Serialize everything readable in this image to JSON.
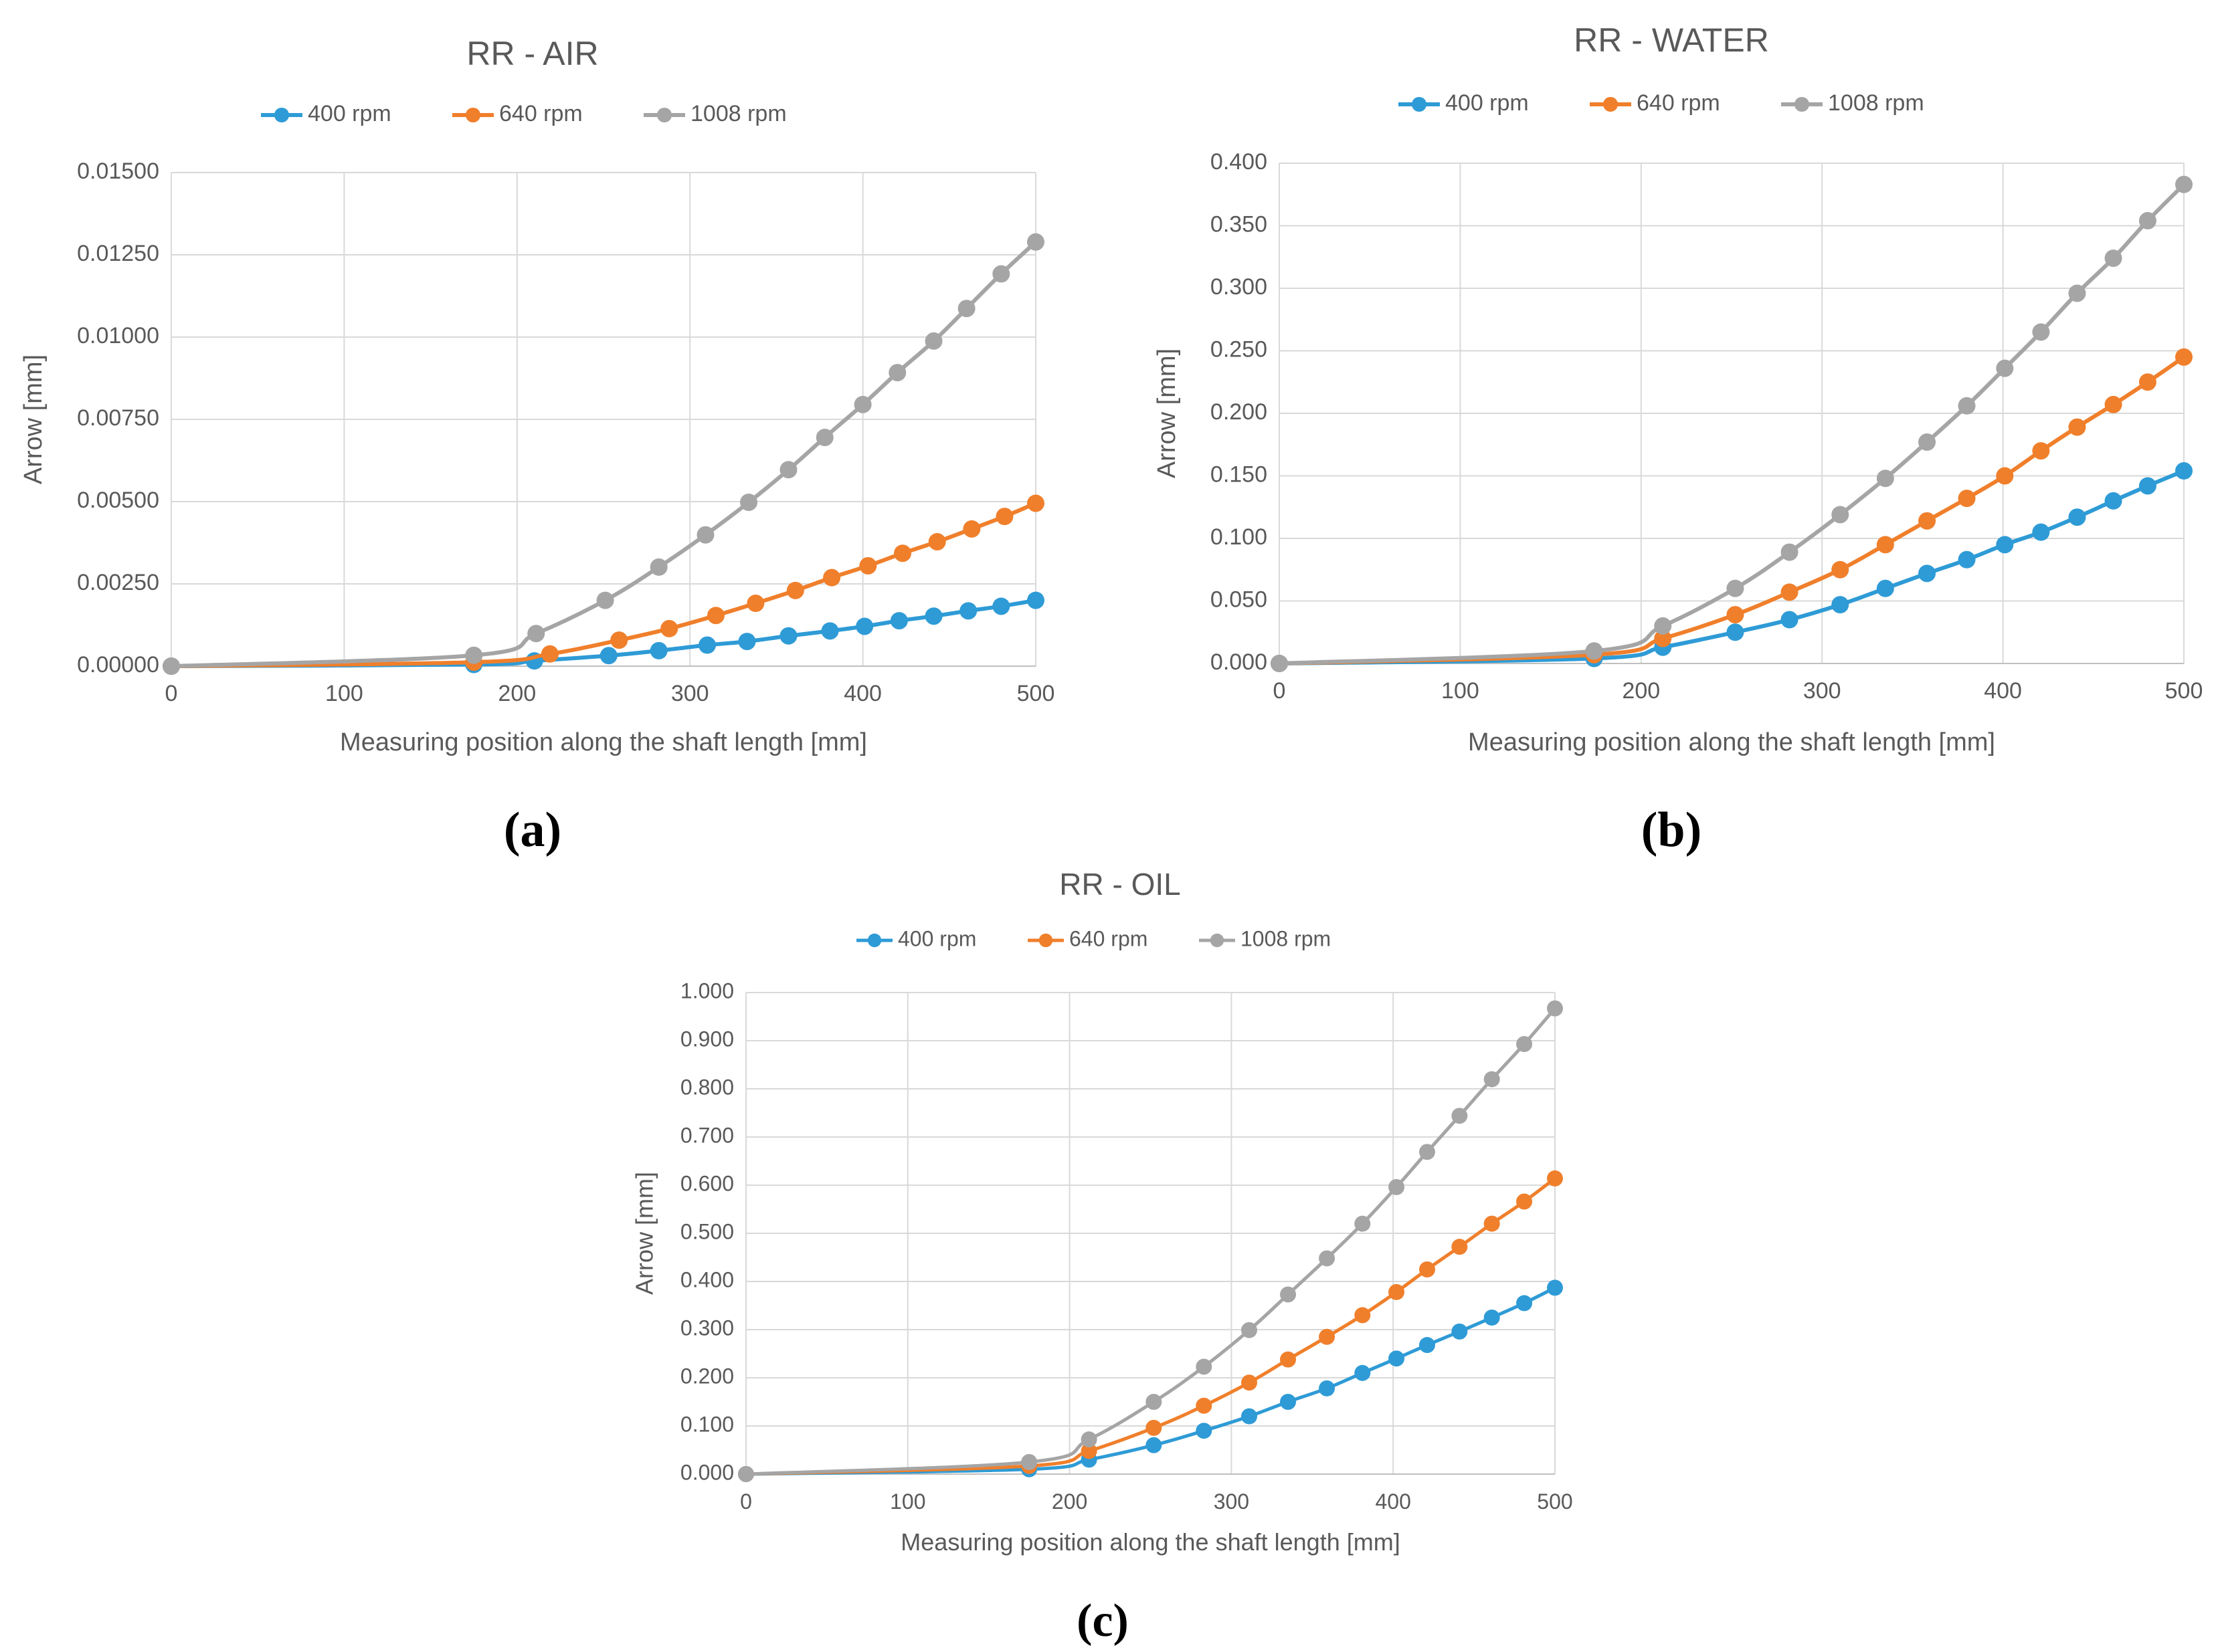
{
  "series_colors": {
    "400 rpm": "#2E9BD6",
    "640 rpm": "#F07F2B",
    "1008 rpm": "#A5A5A5"
  },
  "chart_data": [
    {
      "type": "line",
      "panel_label": "(a)",
      "title": "RR - AIR",
      "xlabel": "Measuring position along the shaft length [mm]",
      "ylabel": "Arrow  [mm]",
      "xlim": [
        0,
        500
      ],
      "ylim": [
        0,
        0.015
      ],
      "xticks": [
        0,
        100,
        200,
        300,
        400,
        500
      ],
      "xtick_labels": [
        "0",
        "100",
        "200",
        "300",
        "400",
        "500"
      ],
      "yticks": [
        0,
        0.0025,
        0.005,
        0.0075,
        0.01,
        0.0125,
        0.015
      ],
      "ytick_labels": [
        "0.00000",
        "0.00250",
        "0.00500",
        "0.00750",
        "0.01000",
        "0.01250",
        "0.01500"
      ],
      "grid": true,
      "legend_position": "top",
      "series": [
        {
          "name": "400 rpm",
          "x": [
            0,
            175,
            210,
            253,
            282,
            310,
            333,
            357,
            381,
            401,
            421,
            441,
            461,
            480,
            500
          ],
          "values": [
            0,
            5e-05,
            0.00016,
            0.00032,
            0.00047,
            0.00064,
            0.00075,
            0.00092,
            0.00107,
            0.00121,
            0.00138,
            0.00152,
            0.00168,
            0.00182,
            0.002
          ]
        },
        {
          "name": "640 rpm",
          "x": [
            0,
            175,
            219,
            259,
            288,
            315,
            338,
            361,
            382,
            403,
            423,
            443,
            463,
            482,
            500
          ],
          "values": [
            0,
            0.00012,
            0.00037,
            0.00079,
            0.00114,
            0.00154,
            0.00191,
            0.0023,
            0.00269,
            0.00305,
            0.00343,
            0.00378,
            0.00417,
            0.00455,
            0.00495
          ]
        },
        {
          "name": "1008 rpm",
          "x": [
            0,
            175,
            211,
            251,
            282,
            309,
            334,
            357,
            378,
            400,
            420,
            441,
            460,
            480,
            500
          ],
          "values": [
            0,
            0.00033,
            0.00099,
            0.002,
            0.00301,
            0.00399,
            0.00498,
            0.00597,
            0.00695,
            0.00795,
            0.00892,
            0.00988,
            0.01087,
            0.01192,
            0.01289
          ]
        }
      ]
    },
    {
      "type": "line",
      "panel_label": "(b)",
      "title": "RR - WATER",
      "xlabel": "Measuring position along the shaft length [mm]",
      "ylabel": "Arrow  [mm]",
      "xlim": [
        0,
        500
      ],
      "ylim": [
        0,
        0.4
      ],
      "xticks": [
        0,
        100,
        200,
        300,
        400,
        500
      ],
      "xtick_labels": [
        "0",
        "100",
        "200",
        "300",
        "400",
        "500"
      ],
      "yticks": [
        0,
        0.05,
        0.1,
        0.15,
        0.2,
        0.25,
        0.3,
        0.35,
        0.4
      ],
      "ytick_labels": [
        "0.000",
        "0.050",
        "0.100",
        "0.150",
        "0.200",
        "0.250",
        "0.300",
        "0.350",
        "0.400"
      ],
      "grid": true,
      "legend_position": "top",
      "series": [
        {
          "name": "400 rpm",
          "x": [
            0,
            174,
            212,
            252,
            282,
            310,
            335,
            358,
            380,
            401,
            421,
            441,
            461,
            480,
            500
          ],
          "values": [
            0,
            0.004,
            0.013,
            0.025,
            0.035,
            0.047,
            0.06,
            0.072,
            0.083,
            0.095,
            0.105,
            0.117,
            0.13,
            0.142,
            0.154
          ]
        },
        {
          "name": "640 rpm",
          "x": [
            0,
            174,
            212,
            252,
            282,
            310,
            335,
            358,
            380,
            401,
            421,
            441,
            461,
            480,
            500
          ],
          "values": [
            0,
            0.007,
            0.02,
            0.039,
            0.057,
            0.075,
            0.095,
            0.114,
            0.132,
            0.15,
            0.17,
            0.189,
            0.207,
            0.225,
            0.245
          ]
        },
        {
          "name": "1008 rpm",
          "x": [
            0,
            174,
            212,
            252,
            282,
            310,
            335,
            358,
            380,
            401,
            421,
            441,
            461,
            480,
            500
          ],
          "values": [
            0,
            0.01,
            0.03,
            0.06,
            0.089,
            0.119,
            0.148,
            0.177,
            0.206,
            0.236,
            0.265,
            0.296,
            0.324,
            0.354,
            0.383
          ]
        }
      ]
    },
    {
      "type": "line",
      "panel_label": "(c)",
      "title": "RR - OIL",
      "xlabel": "Measuring position along the shaft length [mm]",
      "ylabel": "Arrow [mm]",
      "xlim": [
        0,
        500
      ],
      "ylim": [
        0,
        1.0
      ],
      "xticks": [
        0,
        100,
        200,
        300,
        400,
        500
      ],
      "xtick_labels": [
        "0",
        "100",
        "200",
        "300",
        "400",
        "500"
      ],
      "yticks": [
        0,
        0.1,
        0.2,
        0.3,
        0.4,
        0.5,
        0.6,
        0.7,
        0.8,
        0.9,
        1.0
      ],
      "ytick_labels": [
        "0.000",
        "0.100",
        "0.200",
        "0.300",
        "0.400",
        "0.500",
        "0.600",
        "0.700",
        "0.800",
        "0.900",
        "1.000"
      ],
      "grid": true,
      "legend_position": "top",
      "series": [
        {
          "name": "400 rpm",
          "x": [
            0,
            175,
            212,
            252,
            283,
            311,
            335,
            359,
            381,
            402,
            421,
            441,
            461,
            481,
            500
          ],
          "values": [
            0,
            0.01,
            0.03,
            0.06,
            0.09,
            0.12,
            0.15,
            0.178,
            0.21,
            0.24,
            0.268,
            0.296,
            0.325,
            0.355,
            0.387
          ]
        },
        {
          "name": "640 rpm",
          "x": [
            0,
            175,
            212,
            252,
            283,
            311,
            335,
            359,
            381,
            402,
            421,
            441,
            461,
            481,
            500
          ],
          "values": [
            0,
            0.017,
            0.048,
            0.096,
            0.142,
            0.19,
            0.238,
            0.285,
            0.33,
            0.378,
            0.425,
            0.472,
            0.52,
            0.566,
            0.614
          ]
        },
        {
          "name": "1008 rpm",
          "x": [
            0,
            175,
            212,
            252,
            283,
            311,
            335,
            359,
            381,
            402,
            421,
            441,
            461,
            481,
            500
          ],
          "values": [
            0,
            0.025,
            0.072,
            0.15,
            0.223,
            0.299,
            0.373,
            0.448,
            0.52,
            0.596,
            0.669,
            0.744,
            0.82,
            0.893,
            0.967
          ]
        }
      ]
    }
  ]
}
